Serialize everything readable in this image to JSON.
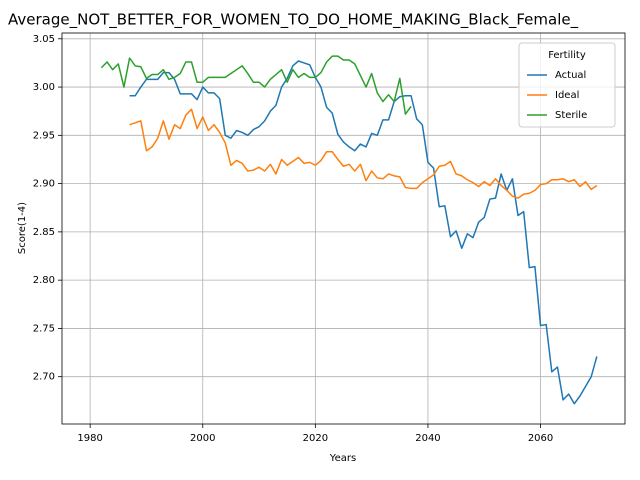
{
  "chart_data": {
    "type": "line",
    "title": "Average_NOT_BETTER_FOR_WOMEN_TO_DO_HOME_MAKING_Black_Female_",
    "x_label": "Years",
    "y_label": "Score(1-4)",
    "legend_title": "Fertility",
    "legend": "upper right",
    "grid": true,
    "xlim": [
      1975,
      2075
    ],
    "ylim": [
      2.651,
      3.056
    ],
    "xticks": [
      1980,
      2000,
      2020,
      2040,
      2060
    ],
    "yticks": [
      {
        "value": 2.7,
        "label": "2.70"
      },
      {
        "value": 2.75,
        "label": "2.75"
      },
      {
        "value": 2.8,
        "label": "2.80"
      },
      {
        "value": 2.85,
        "label": "2.85"
      },
      {
        "value": 2.9,
        "label": "2.90"
      },
      {
        "value": 2.95,
        "label": "2.95"
      },
      {
        "value": 3.0,
        "label": "3.00"
      },
      {
        "value": 3.05,
        "label": "3.05"
      }
    ],
    "series": [
      {
        "name": "Actual",
        "color": "#1f77b4",
        "x": [
          1987,
          1988,
          1989,
          1990,
          1991,
          1992,
          1993,
          1994,
          1995,
          1996,
          1997,
          1998,
          1999,
          2000,
          2001,
          2002,
          2003,
          2004,
          2005,
          2006,
          2007,
          2008,
          2009,
          2010,
          2011,
          2012,
          2013,
          2014,
          2015,
          2016,
          2017,
          2018,
          2019,
          2020,
          2021,
          2022,
          2023,
          2024,
          2025,
          2026,
          2027,
          2028,
          2029,
          2030,
          2031,
          2032,
          2033,
          2034,
          2035,
          2036,
          2037,
          2038,
          2039,
          2040,
          2041,
          2042,
          2043,
          2044,
          2045,
          2046,
          2047,
          2048,
          2049,
          2050,
          2051,
          2052,
          2053,
          2054,
          2055,
          2056,
          2057,
          2058,
          2059,
          2060,
          2061,
          2062,
          2063,
          2064,
          2065,
          2066,
          2067,
          2068,
          2069,
          2070
        ],
        "values": [
          2.991,
          2.991,
          3.0,
          3.008,
          3.008,
          3.008,
          3.015,
          3.015,
          3.008,
          2.993,
          2.993,
          2.993,
          2.987,
          3.0,
          2.994,
          2.994,
          2.988,
          2.95,
          2.947,
          2.955,
          2.953,
          2.95,
          2.956,
          2.959,
          2.965,
          2.975,
          2.981,
          3.0,
          3.009,
          3.022,
          3.027,
          3.025,
          3.023,
          3.01,
          3.0,
          2.979,
          2.973,
          2.951,
          2.943,
          2.938,
          2.934,
          2.941,
          2.938,
          2.952,
          2.95,
          2.966,
          2.966,
          2.985,
          2.99,
          2.991,
          2.991,
          2.967,
          2.961,
          2.922,
          2.916,
          2.876,
          2.877,
          2.845,
          2.851,
          2.833,
          2.848,
          2.844,
          2.86,
          2.865,
          2.884,
          2.885,
          2.91,
          2.893,
          2.905,
          2.867,
          2.871,
          2.813,
          2.814,
          2.753,
          2.754,
          2.705,
          2.71,
          2.676,
          2.682,
          2.672,
          2.68,
          2.69,
          2.7,
          2.721
        ]
      },
      {
        "name": "Ideal",
        "color": "#ff7f0e",
        "x": [
          1987,
          1988,
          1989,
          1990,
          1991,
          1992,
          1993,
          1994,
          1995,
          1996,
          1997,
          1998,
          1999,
          2000,
          2001,
          2002,
          2003,
          2004,
          2005,
          2006,
          2007,
          2008,
          2009,
          2010,
          2011,
          2012,
          2013,
          2014,
          2015,
          2016,
          2017,
          2018,
          2019,
          2020,
          2021,
          2022,
          2023,
          2024,
          2025,
          2026,
          2027,
          2028,
          2029,
          2030,
          2031,
          2032,
          2033,
          2034,
          2035,
          2036,
          2037,
          2038,
          2039,
          2040,
          2041,
          2042,
          2043,
          2044,
          2045,
          2046,
          2047,
          2048,
          2049,
          2050,
          2051,
          2052,
          2053,
          2054,
          2055,
          2056,
          2057,
          2058,
          2059,
          2060,
          2061,
          2062,
          2063,
          2064,
          2065,
          2066,
          2067,
          2068,
          2069,
          2070
        ],
        "values": [
          2.961,
          2.963,
          2.965,
          2.934,
          2.938,
          2.947,
          2.965,
          2.946,
          2.961,
          2.957,
          2.971,
          2.977,
          2.957,
          2.969,
          2.955,
          2.961,
          2.953,
          2.942,
          2.919,
          2.924,
          2.921,
          2.913,
          2.914,
          2.917,
          2.913,
          2.92,
          2.91,
          2.925,
          2.919,
          2.923,
          2.927,
          2.921,
          2.922,
          2.919,
          2.924,
          2.933,
          2.933,
          2.925,
          2.918,
          2.92,
          2.913,
          2.92,
          2.903,
          2.913,
          2.906,
          2.905,
          2.91,
          2.908,
          2.907,
          2.896,
          2.895,
          2.895,
          2.901,
          2.905,
          2.909,
          2.918,
          2.919,
          2.923,
          2.91,
          2.908,
          2.904,
          2.901,
          2.897,
          2.902,
          2.898,
          2.905,
          2.898,
          2.893,
          2.887,
          2.885,
          2.889,
          2.89,
          2.893,
          2.899,
          2.9,
          2.904,
          2.904,
          2.905,
          2.902,
          2.904,
          2.897,
          2.902,
          2.894,
          2.898
        ]
      },
      {
        "name": "Sterile",
        "color": "#2ca02c",
        "x": [
          1982,
          1983,
          1984,
          1985,
          1986,
          1987,
          1988,
          1989,
          1990,
          1991,
          1992,
          1993,
          1994,
          1995,
          1996,
          1997,
          1998,
          1999,
          2000,
          2001,
          2002,
          2003,
          2004,
          2005,
          2006,
          2007,
          2008,
          2009,
          2010,
          2011,
          2012,
          2013,
          2014,
          2015,
          2016,
          2017,
          2018,
          2019,
          2020,
          2021,
          2022,
          2023,
          2024,
          2025,
          2026,
          2027,
          2028,
          2029,
          2030,
          2031,
          2032,
          2033,
          2034,
          2035,
          2036,
          2037
        ],
        "values": [
          3.02,
          3.026,
          3.018,
          3.024,
          3.0,
          3.03,
          3.022,
          3.021,
          3.009,
          3.013,
          3.013,
          3.018,
          3.008,
          3.01,
          3.014,
          3.026,
          3.026,
          3.005,
          3.005,
          3.01,
          3.01,
          3.01,
          3.01,
          3.014,
          3.018,
          3.022,
          3.014,
          3.005,
          3.005,
          3.0,
          3.008,
          3.013,
          3.018,
          3.005,
          3.018,
          3.01,
          3.014,
          3.01,
          3.01,
          3.015,
          3.026,
          3.032,
          3.032,
          3.028,
          3.028,
          3.024,
          3.012,
          3.0,
          3.014,
          2.994,
          2.985,
          2.992,
          2.985,
          3.009,
          2.972,
          2.98
        ]
      }
    ]
  }
}
